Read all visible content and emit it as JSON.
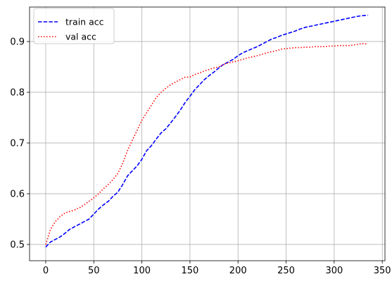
{
  "chart_data": {
    "type": "line",
    "title": "",
    "xlabel": "",
    "ylabel": "",
    "xlim": [
      -16.8,
      352.8
    ],
    "ylim": [
      0.468,
      0.968
    ],
    "x_ticks": [
      0,
      50,
      100,
      150,
      200,
      250,
      300,
      350
    ],
    "y_ticks": [
      0.5,
      0.6,
      0.7,
      0.8,
      0.9
    ],
    "x_tick_labels": [
      "0",
      "50",
      "100",
      "150",
      "200",
      "250",
      "300",
      "350"
    ],
    "y_tick_labels": [
      "0.5",
      "0.6",
      "0.7",
      "0.8",
      "0.9"
    ],
    "grid": true,
    "legend_position": "upper-left",
    "series": [
      {
        "name": "train acc",
        "color": "#0000ff",
        "style": "dashed",
        "x": [
          0,
          5,
          10,
          15,
          20,
          25,
          30,
          35,
          40,
          45,
          50,
          55,
          60,
          65,
          70,
          75,
          80,
          85,
          90,
          95,
          100,
          105,
          110,
          115,
          120,
          125,
          130,
          135,
          140,
          145,
          150,
          155,
          160,
          165,
          170,
          175,
          180,
          185,
          190,
          195,
          200,
          205,
          210,
          215,
          220,
          225,
          230,
          235,
          240,
          245,
          250,
          255,
          260,
          265,
          270,
          275,
          280,
          285,
          290,
          295,
          300,
          305,
          310,
          315,
          320,
          325,
          330,
          335
        ],
        "values": [
          0.495,
          0.505,
          0.51,
          0.515,
          0.522,
          0.53,
          0.535,
          0.54,
          0.545,
          0.55,
          0.56,
          0.57,
          0.578,
          0.585,
          0.595,
          0.603,
          0.618,
          0.635,
          0.645,
          0.655,
          0.668,
          0.685,
          0.695,
          0.708,
          0.72,
          0.728,
          0.74,
          0.752,
          0.765,
          0.78,
          0.792,
          0.805,
          0.815,
          0.825,
          0.833,
          0.84,
          0.848,
          0.855,
          0.86,
          0.865,
          0.872,
          0.878,
          0.882,
          0.886,
          0.89,
          0.895,
          0.9,
          0.905,
          0.908,
          0.912,
          0.915,
          0.918,
          0.921,
          0.925,
          0.928,
          0.93,
          0.932,
          0.934,
          0.936,
          0.938,
          0.94,
          0.942,
          0.944,
          0.946,
          0.948,
          0.95,
          0.951,
          0.952
        ]
      },
      {
        "name": "val acc",
        "color": "#ff0000",
        "style": "dotted",
        "x": [
          0,
          5,
          10,
          15,
          20,
          25,
          30,
          35,
          40,
          45,
          50,
          55,
          60,
          65,
          70,
          75,
          80,
          85,
          90,
          95,
          100,
          105,
          110,
          115,
          120,
          125,
          130,
          135,
          140,
          145,
          150,
          155,
          160,
          165,
          170,
          175,
          180,
          185,
          190,
          195,
          200,
          205,
          210,
          215,
          220,
          225,
          230,
          235,
          240,
          245,
          250,
          255,
          260,
          265,
          270,
          275,
          280,
          285,
          290,
          295,
          300,
          305,
          310,
          315,
          320,
          325,
          330,
          335
        ],
        "values": [
          0.5,
          0.53,
          0.545,
          0.555,
          0.562,
          0.565,
          0.568,
          0.572,
          0.578,
          0.585,
          0.592,
          0.6,
          0.61,
          0.618,
          0.628,
          0.64,
          0.66,
          0.685,
          0.705,
          0.725,
          0.745,
          0.76,
          0.775,
          0.79,
          0.8,
          0.808,
          0.815,
          0.82,
          0.825,
          0.83,
          0.83,
          0.835,
          0.838,
          0.842,
          0.845,
          0.848,
          0.85,
          0.855,
          0.858,
          0.86,
          0.862,
          0.865,
          0.868,
          0.87,
          0.872,
          0.875,
          0.878,
          0.88,
          0.882,
          0.885,
          0.886,
          0.887,
          0.888,
          0.888,
          0.889,
          0.889,
          0.89,
          0.89,
          0.89,
          0.891,
          0.891,
          0.892,
          0.892,
          0.892,
          0.893,
          0.895,
          0.896,
          0.895
        ]
      }
    ]
  }
}
